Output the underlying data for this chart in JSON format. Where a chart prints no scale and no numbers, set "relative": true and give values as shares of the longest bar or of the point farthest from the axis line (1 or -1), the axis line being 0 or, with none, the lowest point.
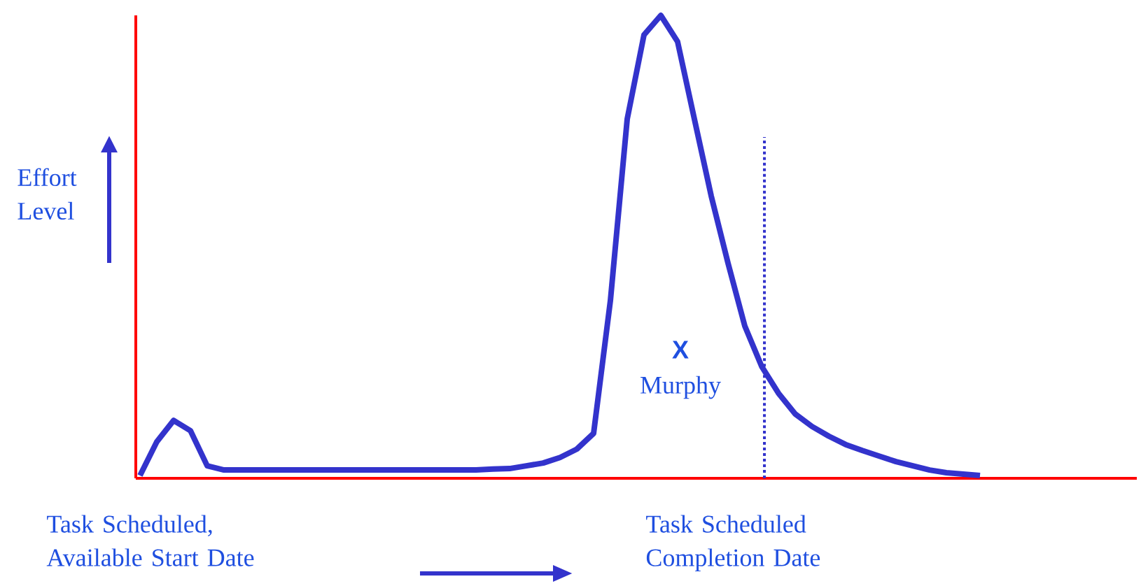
{
  "chart_data": {
    "type": "line",
    "relative": true,
    "ylabel": "Effort Level",
    "categories": [
      null,
      null,
      null,
      null,
      null,
      null,
      null,
      null,
      null,
      null,
      null,
      null,
      null,
      null,
      null,
      null,
      null,
      null,
      null,
      null,
      null,
      null,
      null,
      null,
      null,
      null,
      null,
      null,
      null,
      null,
      null,
      null,
      null,
      null,
      null,
      null,
      null,
      null,
      null,
      null,
      null,
      null,
      null,
      null,
      null,
      null,
      null,
      null,
      null,
      null,
      null
    ],
    "series": [
      {
        "color": "#3333cc",
        "values": [
          0.006,
          0.079,
          0.125,
          0.103,
          0.027,
          0.018,
          0.018,
          0.018,
          0.018,
          0.018,
          0.018,
          0.018,
          0.018,
          0.018,
          0.018,
          0.018,
          0.018,
          0.018,
          0.018,
          0.018,
          0.018,
          0.02,
          0.021,
          0.027,
          0.033,
          0.045,
          0.063,
          0.097,
          0.384,
          0.776,
          0.958,
          1.0,
          0.943,
          0.776,
          0.61,
          0.465,
          0.329,
          0.242,
          0.184,
          0.139,
          0.112,
          0.091,
          0.073,
          0.06,
          0.048,
          0.036,
          0.027,
          0.018,
          0.012,
          0.009,
          0.006
        ]
      }
    ],
    "line_style": "solid",
    "marker": "none",
    "annotations": [
      "**X**",
      "Murphy",
      "Task Scheduled, Available Start Date",
      "Task Scheduled Completion Date"
    ]
  }
}
